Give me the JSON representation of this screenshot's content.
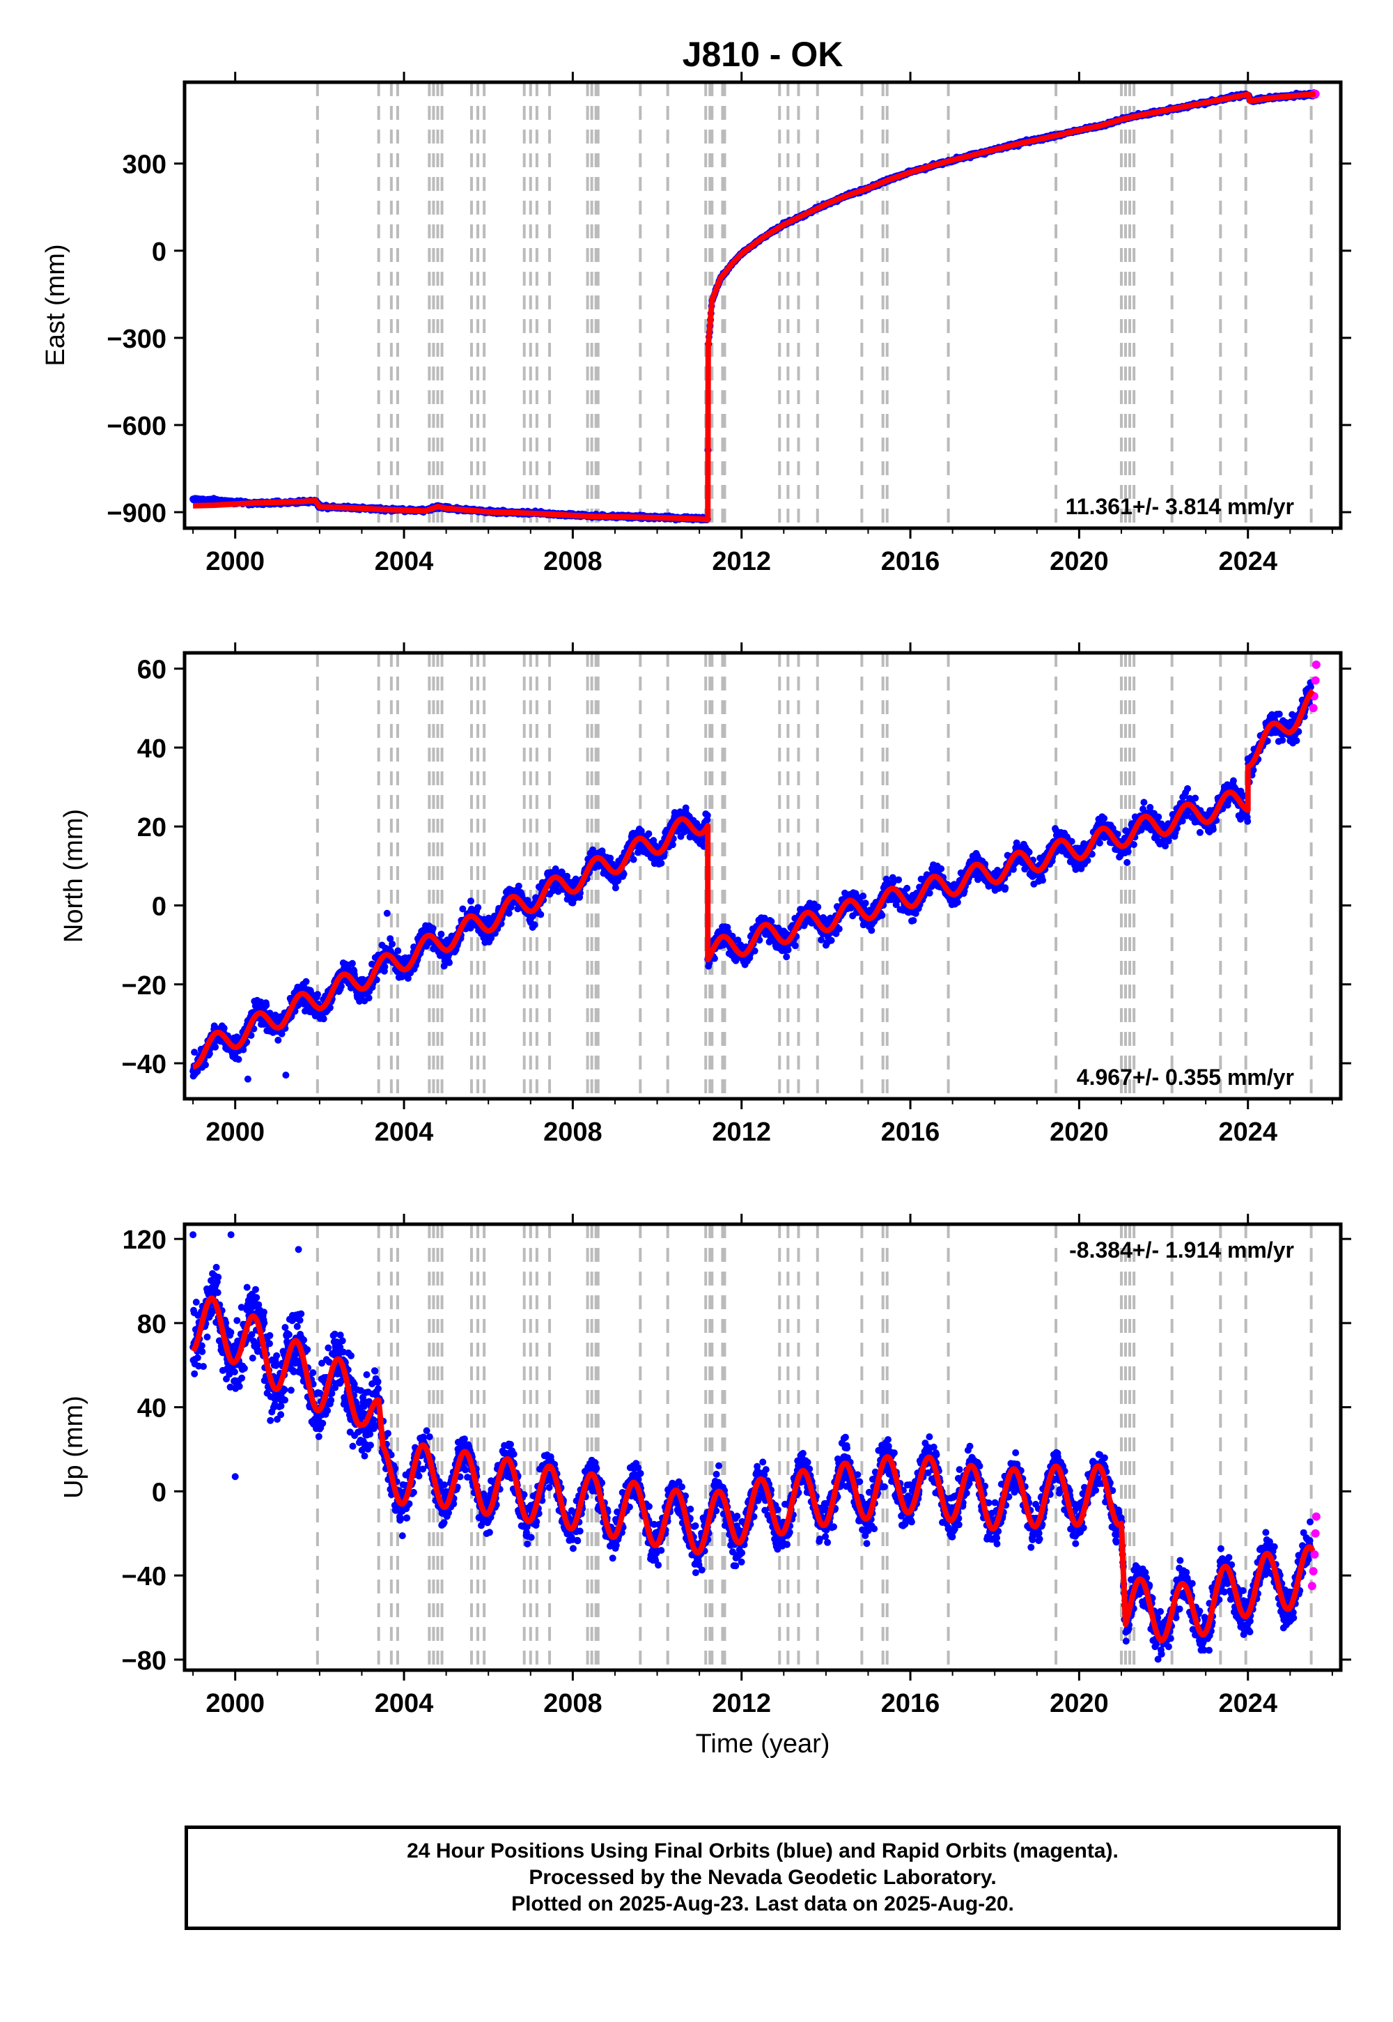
{
  "figure": {
    "title": "J810 - OK",
    "xlabel": "Time (year)",
    "caption": [
      "24 Hour Positions Using Final Orbits (blue) and Rapid Orbits (magenta).",
      "Processed by the Nevada Geodetic Laboratory.",
      "Plotted on 2025-Aug-23. Last data on 2025-Aug-20."
    ]
  },
  "colors": {
    "final_orbit": "#0000ff",
    "rapid_orbit": "#ff00ff",
    "model_fit": "#ff0000",
    "event_line": "#bbbbbb"
  },
  "events": [
    2001.95,
    2003.4,
    2003.7,
    2003.85,
    2004.6,
    2004.7,
    2004.8,
    2004.9,
    2005.6,
    2005.75,
    2005.9,
    2006.85,
    2007.0,
    2007.15,
    2007.45,
    2008.35,
    2008.45,
    2008.55,
    2008.6,
    2009.6,
    2010.25,
    2011.15,
    2011.25,
    2011.3,
    2011.55,
    2011.6,
    2012.9,
    2013.1,
    2013.35,
    2013.8,
    2014.85,
    2015.35,
    2015.45,
    2016.9,
    2019.45,
    2021.0,
    2021.1,
    2021.2,
    2021.3,
    2022.2,
    2023.35,
    2023.95,
    2025.5
  ],
  "chart_data": [
    {
      "type": "scatter",
      "name": "east",
      "ylabel": "East (mm)",
      "annotation": "11.361+/- 3.814 mm/yr",
      "annotation_position": "bottom-right",
      "xlim": [
        1998.8,
        2026.2
      ],
      "ylim": [
        -955,
        580
      ],
      "yticks": [
        -900,
        -600,
        -300,
        0,
        300
      ],
      "xticks": [
        2000,
        2004,
        2008,
        2012,
        2016,
        2020,
        2024
      ],
      "series": [
        {
          "role": "observations",
          "x": [
            1999.0,
            1999.5,
            2000.0,
            2000.5,
            2001.0,
            2001.5,
            2001.9,
            2002.0,
            2002.5,
            2003.0,
            2003.5,
            2004.0,
            2004.5,
            2004.8,
            2005.0,
            2005.5,
            2006.0,
            2006.5,
            2007.0,
            2007.5,
            2008.0,
            2008.5,
            2009.0,
            2009.5,
            2010.0,
            2010.5,
            2011.0,
            2011.2,
            2011.21,
            2011.3,
            2011.5,
            2011.8,
            2012.0,
            2012.5,
            2013.0,
            2013.5,
            2014.0,
            2014.5,
            2015.0,
            2015.5,
            2016.0,
            2016.5,
            2017.0,
            2017.5,
            2018.0,
            2018.5,
            2019.0,
            2019.5,
            2020.0,
            2020.5,
            2021.0,
            2021.5,
            2022.0,
            2022.5,
            2023.0,
            2023.5,
            2024.0,
            2024.05,
            2024.5,
            2025.0,
            2025.6
          ],
          "y": [
            -855,
            -860,
            -865,
            -870,
            -868,
            -865,
            -862,
            -880,
            -883,
            -886,
            -890,
            -892,
            -895,
            -880,
            -886,
            -892,
            -898,
            -900,
            -903,
            -906,
            -910,
            -914,
            -915,
            -916,
            -918,
            -920,
            -922,
            -925,
            -330,
            -170,
            -95,
            -40,
            -10,
            45,
            90,
            125,
            160,
            190,
            215,
            245,
            270,
            292,
            312,
            330,
            348,
            366,
            382,
            398,
            415,
            430,
            452,
            468,
            482,
            496,
            510,
            524,
            538,
            515,
            525,
            532,
            540
          ]
        },
        {
          "role": "fit",
          "x": [
            1999.0,
            1999.5,
            2000.0,
            2000.5,
            2001.0,
            2001.5,
            2001.9,
            2002.0,
            2002.5,
            2003.0,
            2003.5,
            2004.0,
            2004.5,
            2004.8,
            2005.0,
            2005.5,
            2006.0,
            2006.5,
            2007.0,
            2007.5,
            2008.0,
            2008.5,
            2009.0,
            2009.5,
            2010.0,
            2010.5,
            2011.0,
            2011.2,
            2011.21,
            2011.3,
            2011.5,
            2011.8,
            2012.0,
            2012.5,
            2013.0,
            2013.5,
            2014.0,
            2014.5,
            2015.0,
            2015.5,
            2016.0,
            2016.5,
            2017.0,
            2017.5,
            2018.0,
            2018.5,
            2019.0,
            2019.5,
            2020.0,
            2020.5,
            2021.0,
            2021.5,
            2022.0,
            2022.5,
            2023.0,
            2023.5,
            2024.0,
            2024.05,
            2024.5,
            2025.0,
            2025.6
          ],
          "y": [
            -878,
            -876,
            -872,
            -868,
            -866,
            -864,
            -860,
            -882,
            -884,
            -887,
            -891,
            -893,
            -896,
            -881,
            -887,
            -893,
            -899,
            -901,
            -904,
            -907,
            -911,
            -915,
            -916,
            -917,
            -919,
            -921,
            -923,
            -926,
            -330,
            -170,
            -95,
            -40,
            -10,
            45,
            90,
            125,
            160,
            190,
            215,
            245,
            270,
            292,
            312,
            330,
            348,
            366,
            382,
            398,
            415,
            430,
            452,
            468,
            482,
            496,
            510,
            524,
            538,
            515,
            525,
            532,
            540
          ]
        }
      ]
    },
    {
      "type": "scatter",
      "name": "north",
      "ylabel": "North (mm)",
      "annotation": "4.967+/- 0.355 mm/yr",
      "annotation_position": "bottom-right",
      "xlim": [
        1998.8,
        2026.2
      ],
      "ylim": [
        -49,
        64
      ],
      "yticks": [
        -40,
        -20,
        0,
        20,
        40,
        60
      ],
      "xticks": [
        2000,
        2004,
        2008,
        2012,
        2016,
        2020,
        2024
      ],
      "trend": {
        "pre": {
          "x0": 1999.0,
          "y0": -38,
          "x1": 2011.2,
          "y1": 22
        },
        "post": {
          "x0": 2011.2,
          "y0": -12,
          "x1": 2024.0,
          "y1": 27
        },
        "post2": {
          "x0": 2024.0,
          "y0": 38,
          "x1": 2025.6,
          "y1": 52
        }
      },
      "seasonal_amplitude": 3.0,
      "noise": 2.2,
      "rapid_points": {
        "x": [
          2025.55,
          2025.57,
          2025.6,
          2025.62
        ],
        "y": [
          50,
          53,
          57,
          61
        ]
      }
    },
    {
      "type": "scatter",
      "name": "up",
      "ylabel": "Up (mm)",
      "annotation": "-8.384+/- 1.914 mm/yr",
      "annotation_position": "top-right",
      "xlim": [
        1998.8,
        2026.2
      ],
      "ylim": [
        -85,
        127
      ],
      "yticks": [
        -80,
        -40,
        0,
        40,
        80,
        120
      ],
      "xticks": [
        2000,
        2004,
        2008,
        2012,
        2016,
        2020,
        2024
      ],
      "fit_baseline": {
        "x": [
          1999.0,
          2000.0,
          2001.0,
          2002.0,
          2003.0,
          2003.4,
          2003.5,
          2004.5,
          2006.0,
          2008.0,
          2010.0,
          2011.2,
          2012.0,
          2014.0,
          2016.0,
          2018.0,
          2019.5,
          2021.0,
          2021.1,
          2022.5,
          2024.0,
          2025.6
        ],
        "y": [
          80,
          75,
          62,
          52,
          45,
          30,
          8,
          8,
          3,
          -4,
          -12,
          -16,
          -10,
          -2,
          4,
          -4,
          -2,
          -2,
          -55,
          -58,
          -45,
          -40
        ]
      },
      "seasonal_amplitude": 14,
      "noise": 7,
      "rapid_points": {
        "x": [
          2025.52,
          2025.55,
          2025.58,
          2025.6,
          2025.62
        ],
        "y": [
          -45,
          -38,
          -30,
          -20,
          -12
        ]
      }
    }
  ]
}
